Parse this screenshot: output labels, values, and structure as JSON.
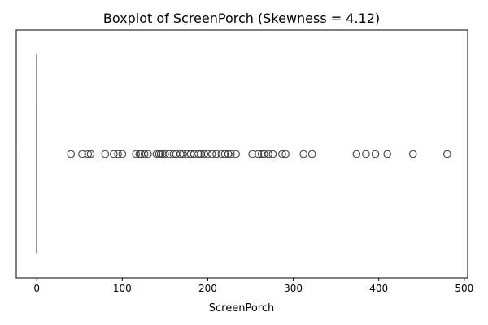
{
  "chart_data": {
    "type": "boxplot",
    "title": "Boxplot of ScreenPorch (Skewness = 4.12)",
    "xlabel": "ScreenPorch",
    "ylabel": "",
    "orientation": "horizontal",
    "xlim": [
      -24,
      504
    ],
    "x_ticks": [
      0,
      100,
      200,
      300,
      400,
      500
    ],
    "y_ticks": [
      ""
    ],
    "grid": false,
    "box": {
      "q1": 0,
      "median": 0,
      "q3": 0,
      "whisker_low": 0,
      "whisker_high": 0
    },
    "outliers": [
      40,
      53,
      60,
      63,
      80,
      90,
      95,
      100,
      116,
      120,
      122,
      126,
      130,
      140,
      143,
      145,
      147,
      150,
      155,
      160,
      163,
      168,
      171,
      176,
      180,
      184,
      189,
      192,
      196,
      200,
      205,
      210,
      216,
      220,
      224,
      227,
      233,
      252,
      259,
      263,
      266,
      271,
      276,
      287,
      291,
      312,
      322,
      374,
      385,
      396,
      410,
      440,
      480
    ],
    "colors": {
      "box_edge": "#3f3f3f",
      "outlier_edge": "#3f3f3f",
      "axes": "#000000"
    }
  }
}
